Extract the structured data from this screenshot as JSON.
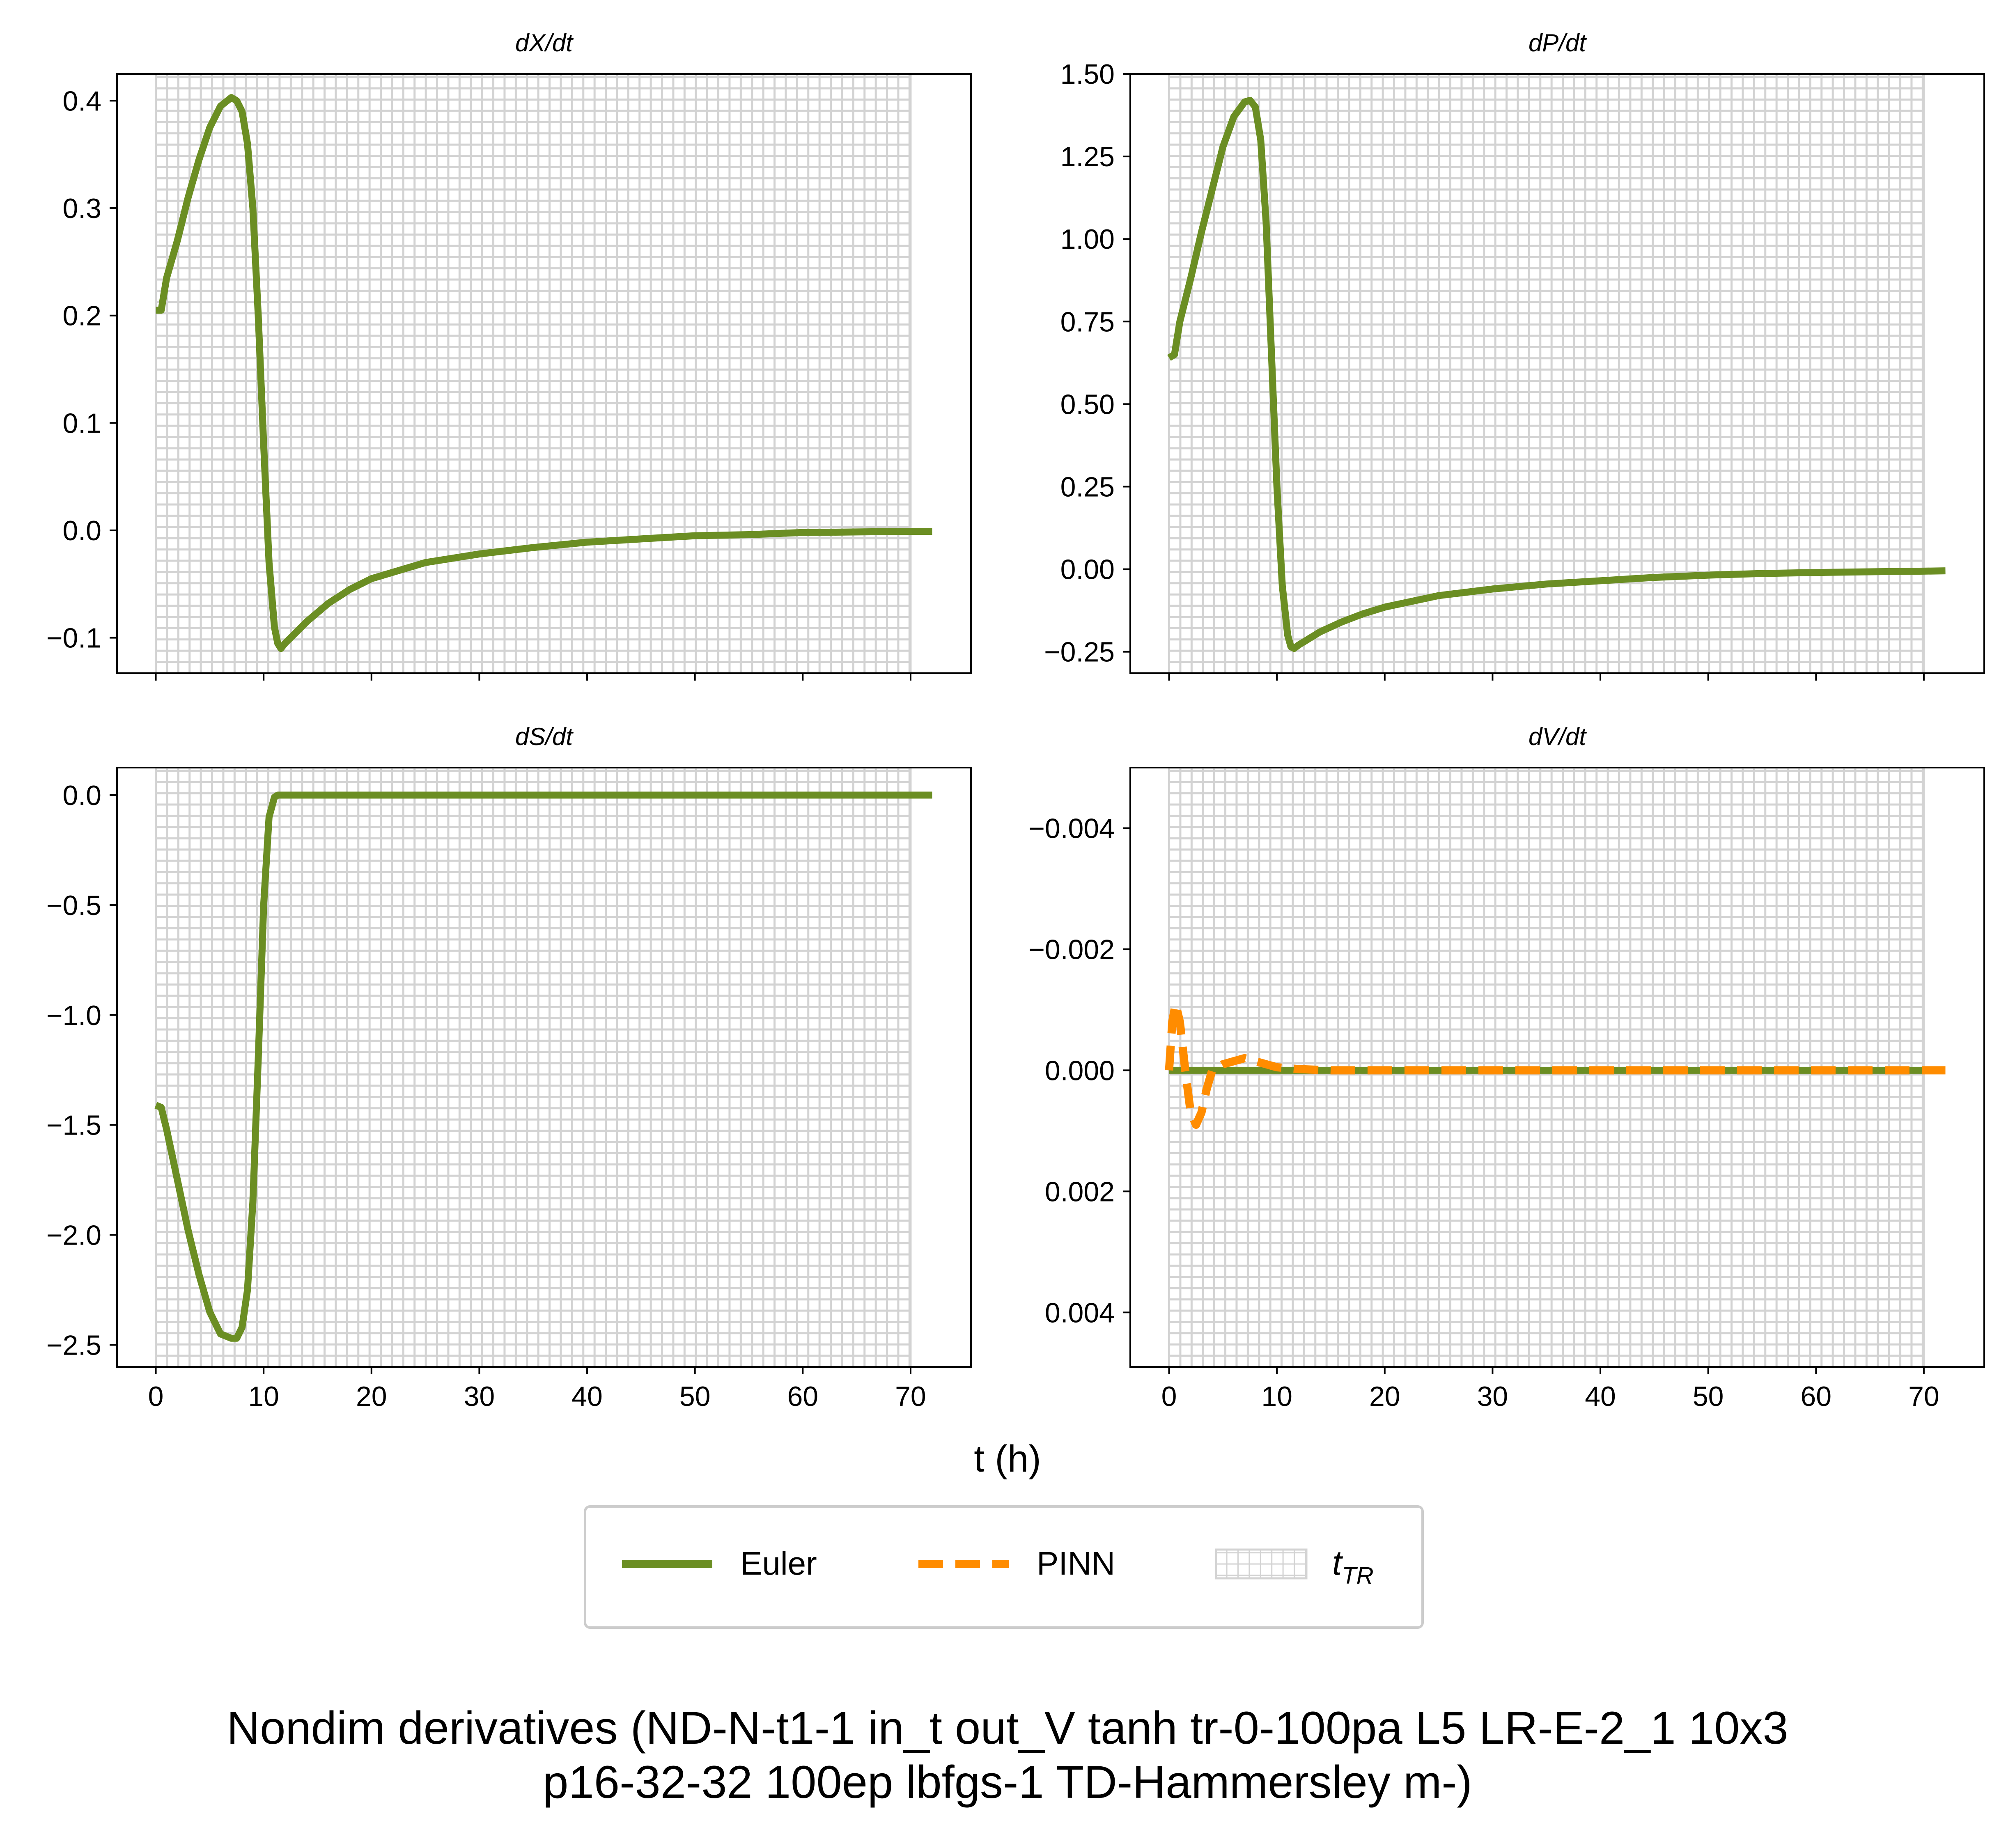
{
  "figure": {
    "suptitle_line1": "Nondim derivatives (ND-N-t1-1 in_t out_V tanh tr-0-100pa L5 LR-E-2_1 10x3",
    "suptitle_line2": "p16-32-32 100ep lbfgs-1 TD-Hammersley m-)",
    "xlabel": "t (h)",
    "legend": {
      "items": [
        {
          "label": "Euler",
          "style": "solid",
          "color": "#6b8e23"
        },
        {
          "label": "PINN",
          "style": "dashed",
          "color": "#ff8c00"
        },
        {
          "label": "t",
          "subscript": "TR",
          "style": "hatch",
          "color": "#d3d3d3"
        }
      ]
    },
    "colors": {
      "euler": "#6b8e23",
      "pinn": "#ff8c00",
      "grid": "#d3d3d3"
    }
  },
  "chart_data": [
    {
      "type": "line",
      "title": "dX/dt",
      "xlim": [
        -3.6,
        75.6
      ],
      "ylim": [
        -0.133,
        0.425
      ],
      "yticks": [
        -0.1,
        0.0,
        0.1,
        0.2,
        0.3,
        0.4
      ],
      "yticklabels": [
        "−0.1",
        "0.0",
        "0.1",
        "0.2",
        "0.3",
        "0.4"
      ],
      "xticks": [
        0,
        10,
        20,
        30,
        40,
        50,
        60,
        70
      ],
      "xticklabels": [
        "",
        "",
        "",
        "",
        "",
        "",
        "",
        ""
      ],
      "training_region": [
        0,
        70
      ],
      "series": [
        {
          "name": "Euler",
          "x": [
            0,
            0.5,
            1,
            2,
            3,
            4,
            5,
            6,
            7,
            7.5,
            8,
            8.5,
            9,
            9.5,
            10,
            10.5,
            11,
            11.3,
            11.6,
            12,
            13,
            14,
            16,
            18,
            20,
            25,
            30,
            35,
            40,
            45,
            50,
            55,
            60,
            65,
            70,
            72
          ],
          "y": [
            0.205,
            0.205,
            0.235,
            0.27,
            0.31,
            0.345,
            0.375,
            0.395,
            0.403,
            0.4,
            0.39,
            0.36,
            0.3,
            0.2,
            0.08,
            -0.03,
            -0.09,
            -0.105,
            -0.11,
            -0.105,
            -0.095,
            -0.085,
            -0.068,
            -0.055,
            -0.045,
            -0.03,
            -0.022,
            -0.016,
            -0.011,
            -0.008,
            -0.005,
            -0.004,
            -0.002,
            -0.0015,
            -0.001,
            -0.001
          ]
        }
      ]
    },
    {
      "type": "line",
      "title": "dP/dt",
      "xlim": [
        -3.6,
        75.6
      ],
      "ylim": [
        -0.315,
        1.5
      ],
      "yticks": [
        -0.25,
        0.0,
        0.25,
        0.5,
        0.75,
        1.0,
        1.25,
        1.5
      ],
      "yticklabels": [
        "−0.25",
        "0.00",
        "0.25",
        "0.50",
        "0.75",
        "1.00",
        "1.25",
        "1.50"
      ],
      "xticks": [
        0,
        10,
        20,
        30,
        40,
        50,
        60,
        70
      ],
      "xticklabels": [
        "",
        "",
        "",
        "",
        "",
        "",
        "",
        ""
      ],
      "training_region": [
        0,
        70
      ],
      "series": [
        {
          "name": "Euler",
          "x": [
            0,
            0.5,
            1,
            2,
            3,
            4,
            5,
            6,
            7,
            7.5,
            8,
            8.5,
            9,
            9.5,
            10,
            10.5,
            11,
            11.3,
            11.6,
            12,
            13,
            14,
            16,
            18,
            20,
            25,
            30,
            35,
            40,
            45,
            50,
            55,
            60,
            65,
            70,
            72
          ],
          "y": [
            0.64,
            0.65,
            0.75,
            0.88,
            1.02,
            1.15,
            1.28,
            1.37,
            1.415,
            1.42,
            1.4,
            1.3,
            1.05,
            0.65,
            0.25,
            -0.05,
            -0.2,
            -0.235,
            -0.24,
            -0.23,
            -0.21,
            -0.19,
            -0.16,
            -0.135,
            -0.115,
            -0.08,
            -0.06,
            -0.045,
            -0.035,
            -0.025,
            -0.018,
            -0.013,
            -0.01,
            -0.008,
            -0.006,
            -0.005
          ]
        }
      ]
    },
    {
      "type": "line",
      "title": "dS/dt",
      "xlim": [
        -3.6,
        75.6
      ],
      "ylim": [
        -2.6,
        0.125
      ],
      "yticks": [
        -2.5,
        -2.0,
        -1.5,
        -1.0,
        -0.5,
        0.0
      ],
      "yticklabels": [
        "−2.5",
        "−2.0",
        "−1.5",
        "−1.0",
        "−0.5",
        "0.0"
      ],
      "xticks": [
        0,
        10,
        20,
        30,
        40,
        50,
        60,
        70
      ],
      "xticklabels": [
        "0",
        "10",
        "20",
        "30",
        "40",
        "50",
        "60",
        "70"
      ],
      "training_region": [
        0,
        70
      ],
      "series": [
        {
          "name": "Euler",
          "x": [
            0,
            0.5,
            1,
            2,
            3,
            4,
            5,
            6,
            7,
            7.5,
            8,
            8.5,
            9,
            9.5,
            10,
            10.5,
            11,
            11.3,
            11.6,
            12,
            14,
            20,
            30,
            40,
            50,
            60,
            70,
            72
          ],
          "y": [
            -1.41,
            -1.42,
            -1.52,
            -1.75,
            -1.98,
            -2.18,
            -2.35,
            -2.45,
            -2.47,
            -2.47,
            -2.42,
            -2.25,
            -1.85,
            -1.2,
            -0.5,
            -0.1,
            -0.01,
            0.0,
            0.0,
            0.0,
            0.0,
            0.0,
            0.0,
            0.0,
            0.0,
            0.0,
            0.0,
            0.0
          ]
        }
      ]
    },
    {
      "type": "line",
      "title": "dV/dt",
      "xlim": [
        -3.6,
        75.6
      ],
      "ylim": [
        0.0049,
        -0.005
      ],
      "yticks": [
        -0.004,
        -0.002,
        0.0,
        0.002,
        0.004
      ],
      "yticklabels": [
        "−0.004",
        "−0.002",
        "0.000",
        "0.002",
        "0.004"
      ],
      "xticks": [
        0,
        10,
        20,
        30,
        40,
        50,
        60,
        70
      ],
      "xticklabels": [
        "0",
        "10",
        "20",
        "30",
        "40",
        "50",
        "60",
        "70"
      ],
      "training_region": [
        0,
        70
      ],
      "series": [
        {
          "name": "Euler",
          "x": [
            0,
            72
          ],
          "y": [
            0,
            0
          ]
        },
        {
          "name": "PINN",
          "x": [
            0,
            0.3,
            0.6,
            1,
            1.5,
            2,
            2.5,
            3,
            3.5,
            4,
            5,
            6,
            7,
            8,
            9,
            10,
            12,
            15,
            20,
            30,
            40,
            50,
            60,
            70,
            72
          ],
          "y": [
            0.0,
            -0.0008,
            -0.0011,
            -0.0008,
            0.0,
            0.0007,
            0.0009,
            0.0007,
            0.0003,
            0.0,
            -0.0001,
            -0.00015,
            -0.0002,
            -0.00015,
            -0.0001,
            -5e-05,
            -2e-05,
            0.0,
            0.0,
            0.0,
            0.0,
            0.0,
            0.0,
            0.0,
            0.0
          ]
        }
      ]
    }
  ]
}
